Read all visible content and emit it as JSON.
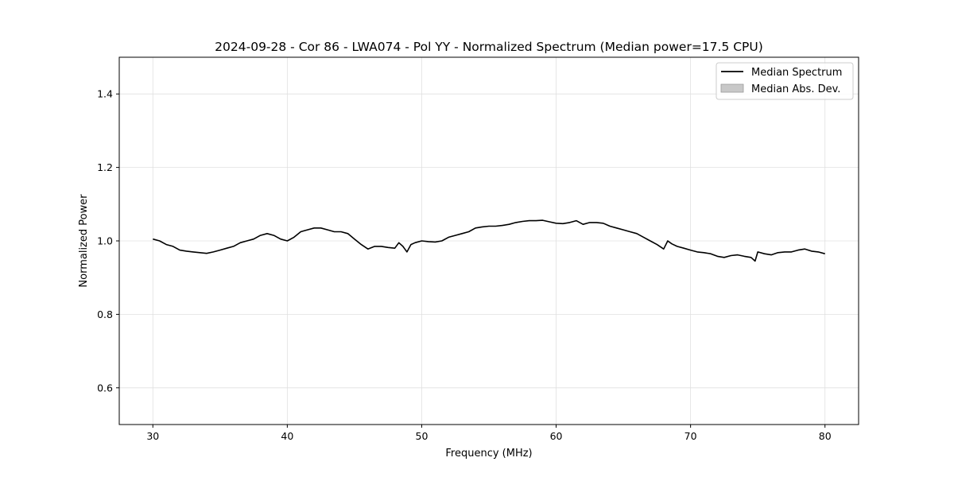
{
  "chart_data": {
    "type": "line",
    "title": "2024-09-28 - Cor 86 - LWA074 - Pol YY - Normalized Spectrum (Median power=17.5 CPU)",
    "xlabel": "Frequency (MHz)",
    "ylabel": "Normalized Power",
    "xlim": [
      27.5,
      82.5
    ],
    "ylim": [
      0.5,
      1.5
    ],
    "xticks": [
      30,
      40,
      50,
      60,
      70,
      80
    ],
    "yticks": [
      0.6,
      0.8,
      1.0,
      1.2,
      1.4
    ],
    "xtick_labels": [
      "30",
      "40",
      "50",
      "60",
      "70",
      "80"
    ],
    "ytick_labels": [
      "0.6",
      "0.8",
      "1.0",
      "1.2",
      "1.4"
    ],
    "grid": true,
    "legend_position": "top-right",
    "series": [
      {
        "name": "Median Spectrum",
        "color": "#000000",
        "x": [
          30.0,
          30.5,
          31.0,
          31.5,
          32.0,
          32.5,
          33.0,
          33.5,
          34.0,
          34.5,
          35.0,
          35.5,
          36.0,
          36.5,
          37.0,
          37.5,
          38.0,
          38.5,
          39.0,
          39.5,
          40.0,
          40.5,
          41.0,
          41.5,
          42.0,
          42.5,
          43.0,
          43.5,
          44.0,
          44.5,
          45.0,
          45.5,
          46.0,
          46.5,
          47.0,
          47.5,
          48.0,
          48.3,
          48.6,
          48.9,
          49.2,
          49.5,
          50.0,
          50.5,
          51.0,
          51.5,
          52.0,
          52.5,
          53.0,
          53.5,
          54.0,
          54.5,
          55.0,
          55.5,
          56.0,
          56.5,
          57.0,
          57.5,
          58.0,
          58.5,
          59.0,
          59.5,
          60.0,
          60.5,
          61.0,
          61.5,
          62.0,
          62.5,
          63.0,
          63.5,
          64.0,
          64.5,
          65.0,
          65.5,
          66.0,
          66.5,
          67.0,
          67.5,
          68.0,
          68.3,
          68.6,
          69.0,
          69.5,
          70.0,
          70.5,
          71.0,
          71.5,
          72.0,
          72.5,
          73.0,
          73.5,
          74.0,
          74.5,
          74.8,
          75.0,
          75.5,
          76.0,
          76.5,
          77.0,
          77.5,
          78.0,
          78.5,
          79.0,
          79.5,
          80.0
        ],
        "values": [
          1.005,
          1.0,
          0.99,
          0.985,
          0.975,
          0.972,
          0.97,
          0.968,
          0.966,
          0.97,
          0.975,
          0.98,
          0.985,
          0.995,
          1.0,
          1.005,
          1.015,
          1.02,
          1.015,
          1.005,
          1.0,
          1.01,
          1.025,
          1.03,
          1.035,
          1.035,
          1.03,
          1.025,
          1.025,
          1.02,
          1.005,
          0.99,
          0.978,
          0.985,
          0.985,
          0.982,
          0.98,
          0.995,
          0.985,
          0.97,
          0.99,
          0.995,
          1.0,
          0.998,
          0.997,
          1.0,
          1.01,
          1.015,
          1.02,
          1.025,
          1.035,
          1.038,
          1.04,
          1.04,
          1.042,
          1.045,
          1.05,
          1.053,
          1.055,
          1.055,
          1.056,
          1.052,
          1.048,
          1.047,
          1.05,
          1.055,
          1.045,
          1.05,
          1.05,
          1.048,
          1.04,
          1.035,
          1.03,
          1.025,
          1.02,
          1.01,
          1.0,
          0.99,
          0.978,
          1.0,
          0.992,
          0.985,
          0.98,
          0.975,
          0.97,
          0.968,
          0.965,
          0.958,
          0.955,
          0.96,
          0.962,
          0.958,
          0.955,
          0.945,
          0.97,
          0.965,
          0.962,
          0.968,
          0.97,
          0.97,
          0.975,
          0.978,
          0.972,
          0.97,
          0.965
        ]
      },
      {
        "name": "Median Abs. Dev.",
        "color": "#c8c8c8",
        "type": "band"
      }
    ]
  }
}
